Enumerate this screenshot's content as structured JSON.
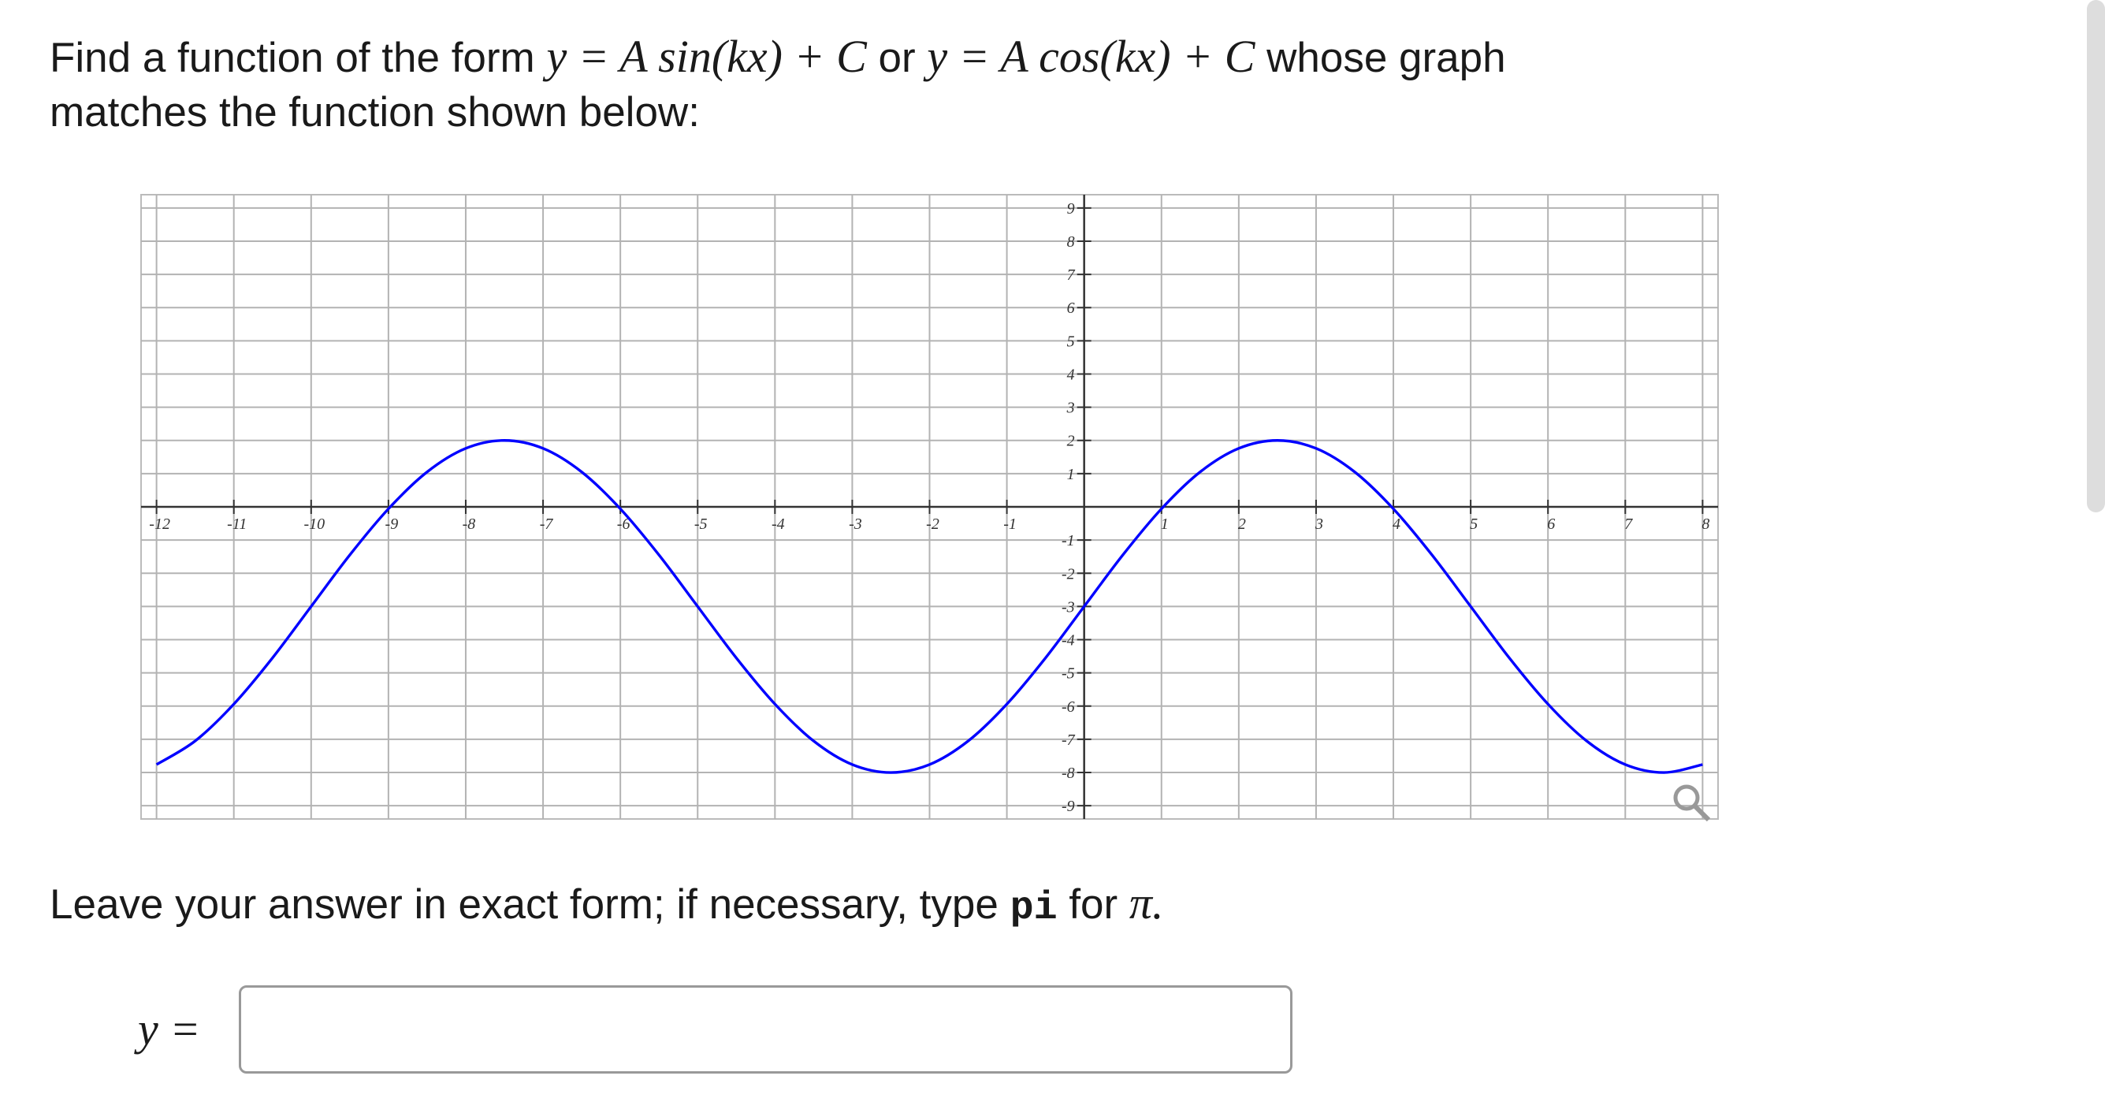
{
  "question": {
    "lead": "Find a function of the form",
    "form1": "y = A sin(kx) + C",
    "or": "or",
    "form2": "y = A cos(kx) + C",
    "tail": "whose graph",
    "line2": "matches the function shown below:"
  },
  "chart_data": {
    "type": "line",
    "x": [
      -12,
      -11.5,
      -11,
      -10.5,
      -10,
      -9.5,
      -9,
      -8.5,
      -8,
      -7.5,
      -7,
      -6.5,
      -6,
      -5.5,
      -5,
      -4.5,
      -4,
      -3.5,
      -3,
      -2.5,
      -2,
      -1.5,
      -1,
      -0.5,
      0,
      0.5,
      1,
      1.5,
      2,
      2.5,
      3,
      3.5,
      4,
      4.5,
      5,
      5.5,
      6,
      6.5,
      7,
      7.5,
      8
    ],
    "values": [
      -7.76,
      -7.05,
      -5.94,
      -4.55,
      -3,
      -1.45,
      -0.06,
      1.05,
      1.76,
      2,
      1.76,
      1.05,
      -0.06,
      -1.45,
      -3,
      -4.55,
      -5.94,
      -7.05,
      -7.76,
      -8,
      -7.76,
      -7.05,
      -5.94,
      -4.55,
      -3,
      -1.45,
      -0.06,
      1.05,
      1.76,
      2,
      1.76,
      1.05,
      -0.06,
      -1.45,
      -3,
      -4.55,
      -5.94,
      -7.05,
      -7.76,
      -8,
      -7.76
    ],
    "color": "#0000ff",
    "xlim": [
      -12.2,
      8.2
    ],
    "ylim": [
      -9.4,
      9.4
    ],
    "xticks": [
      -12,
      -11,
      -10,
      -9,
      -8,
      -7,
      -6,
      -5,
      -4,
      -3,
      -2,
      -1,
      1,
      2,
      3,
      4,
      5,
      6,
      7,
      8
    ],
    "yticks": [
      -9,
      -8,
      -7,
      -6,
      -5,
      -4,
      -3,
      -2,
      -1,
      1,
      2,
      3,
      4,
      5,
      6,
      7,
      8,
      9
    ],
    "grid": true
  },
  "instruction": {
    "lead": "Leave your answer in exact form; if necessary, type",
    "code": "pi",
    "mid": "for",
    "symbol": "π."
  },
  "answer": {
    "label": "y ="
  }
}
